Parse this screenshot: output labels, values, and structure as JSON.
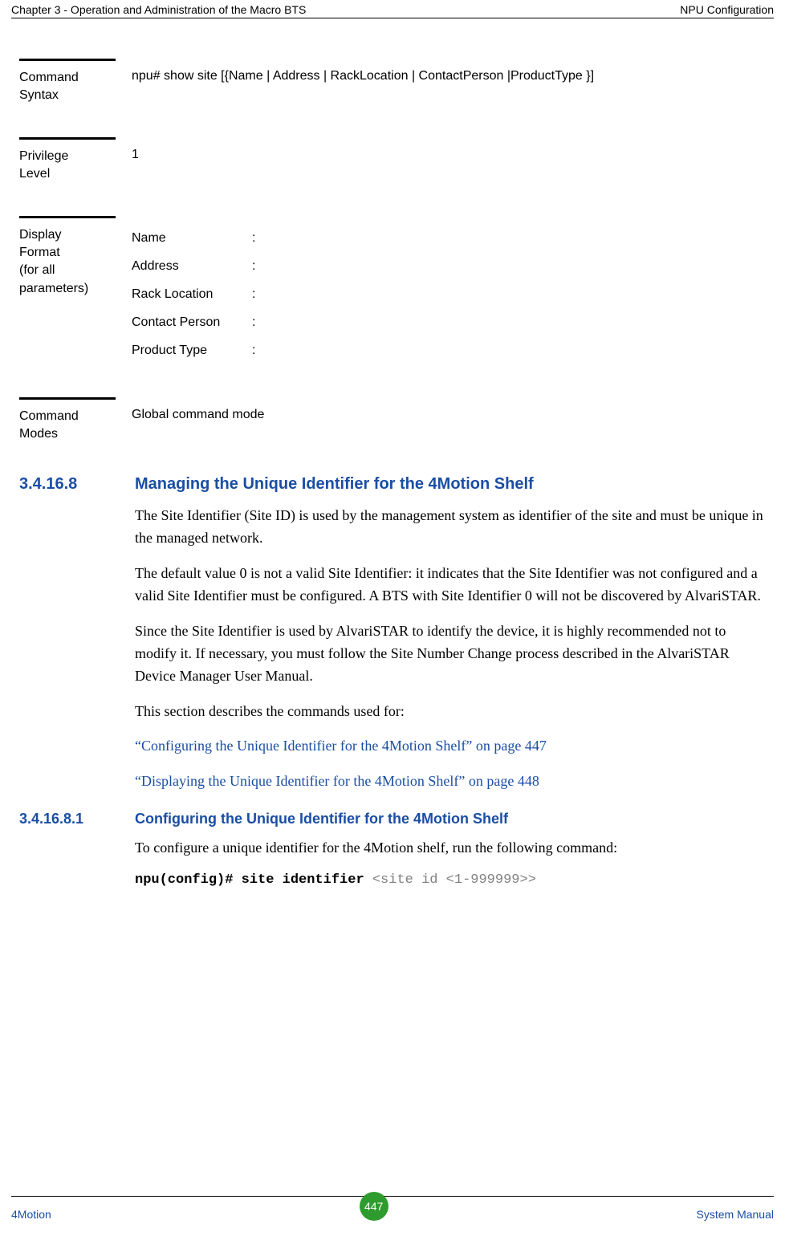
{
  "header": {
    "left": "Chapter 3 - Operation and Administration of the Macro BTS",
    "right": "NPU Configuration"
  },
  "blocks": {
    "command_syntax": {
      "label_l1": "Command",
      "label_l2": "Syntax",
      "value": "npu# show site [{Name | Address | RackLocation | ContactPerson |ProductType }]"
    },
    "privilege": {
      "label_l1": "Privilege",
      "label_l2": "Level",
      "value": "1"
    },
    "display_format": {
      "label_l1": "Display",
      "label_l2": "Format",
      "label_l3": "(for all",
      "label_l4": "parameters)",
      "rows": [
        {
          "label": "Name",
          "sep": ":"
        },
        {
          "label": "Address",
          "sep": ":"
        },
        {
          "label": "Rack Location",
          "sep": ":"
        },
        {
          "label": "Contact Person",
          "sep": ":"
        },
        {
          "label": "Product Type",
          "sep": ":"
        }
      ]
    },
    "command_modes": {
      "label_l1": "Command",
      "label_l2": "Modes",
      "value": "Global command mode"
    }
  },
  "section": {
    "num": "3.4.16.8",
    "title": "Managing the Unique Identifier for the 4Motion Shelf",
    "p1": "The Site Identifier (Site ID) is used by the management system as identifier of the site and must be unique in the managed network.",
    "p2": "The default value 0 is not a valid Site Identifier: it indicates that the Site Identifier was not configured and a valid Site Identifier must be configured. A BTS with Site Identifier 0 will not be discovered by AlvariSTAR.",
    "p3": "Since the Site Identifier is used by AlvariSTAR to identify the device, it is highly recommended not to modify it. If necessary, you must follow the Site Number Change process described in the AlvariSTAR Device Manager User Manual.",
    "p4": "This section describes the commands used for:",
    "link1": "“Configuring the Unique Identifier for the 4Motion Shelf” on page 447",
    "link2": "“Displaying the Unique Identifier for the 4Motion Shelf” on page 448"
  },
  "subsection": {
    "num": "3.4.16.8.1",
    "title": "Configuring the Unique Identifier for the 4Motion Shelf",
    "p1": "To configure a unique identifier for the 4Motion shelf, run the following command:",
    "cmd_bold": "npu(config)# site identifier ",
    "cmd_gray": "<site id <1-999999>>"
  },
  "footer": {
    "left": "4Motion",
    "page": "447",
    "right": "System Manual"
  },
  "colors": {
    "heading": "#1a4ea4",
    "badge_bg": "#2e9b2e",
    "param_gray": "#808080",
    "text": "#000000",
    "bg": "#ffffff"
  }
}
